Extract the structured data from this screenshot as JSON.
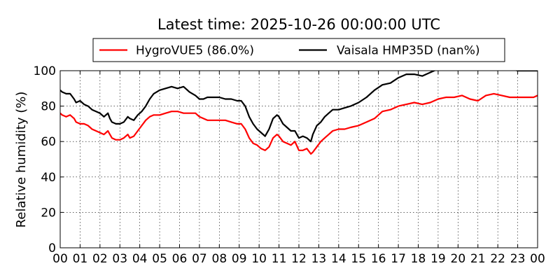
{
  "chart_data": {
    "type": "line",
    "title": "Latest time: 2025-10-26 00:00:00 UTC",
    "xlabel": "",
    "ylabel": "Relative humidity (%)",
    "xlim": [
      0,
      24
    ],
    "ylim": [
      0,
      100
    ],
    "grid": true,
    "legend_position": "top",
    "x_tick_labels": [
      "00",
      "01",
      "02",
      "03",
      "04",
      "05",
      "06",
      "07",
      "08",
      "09",
      "10",
      "11",
      "12",
      "13",
      "14",
      "15",
      "16",
      "17",
      "18",
      "19",
      "20",
      "21",
      "22",
      "23",
      "00"
    ],
    "y_ticks": [
      0,
      20,
      40,
      60,
      80,
      100
    ],
    "series": [
      {
        "name": "HygroVUE5 (86.0%)",
        "color": "#ff0000",
        "x": [
          0,
          0.1,
          0.3,
          0.5,
          0.7,
          0.8,
          1.0,
          1.2,
          1.4,
          1.6,
          1.8,
          2.0,
          2.2,
          2.4,
          2.5,
          2.6,
          2.8,
          3.0,
          3.2,
          3.4,
          3.5,
          3.7,
          3.9,
          4.1,
          4.3,
          4.5,
          4.7,
          5.0,
          5.3,
          5.6,
          5.9,
          6.2,
          6.5,
          6.8,
          7.0,
          7.2,
          7.4,
          7.7,
          8.0,
          8.3,
          8.6,
          8.9,
          9.1,
          9.3,
          9.5,
          9.7,
          9.9,
          10.1,
          10.3,
          10.5,
          10.7,
          10.9,
          11.0,
          11.2,
          11.4,
          11.6,
          11.8,
          12.0,
          12.2,
          12.4,
          12.6,
          12.7,
          12.9,
          13.1,
          13.3,
          13.5,
          13.7,
          14.0,
          14.3,
          14.6,
          15.0,
          15.4,
          15.8,
          16.2,
          16.6,
          17.0,
          17.4,
          17.8,
          18.2,
          18.6,
          19.0,
          19.4,
          19.8,
          20.2,
          20.6,
          21.0,
          21.4,
          21.8,
          22.2,
          22.6,
          23.0,
          23.4,
          23.8,
          24.0
        ],
        "values": [
          76,
          75,
          74,
          75,
          73,
          71,
          70,
          70,
          69,
          67,
          66,
          65,
          64,
          66,
          64,
          62,
          61,
          61,
          62,
          64,
          62,
          63,
          66,
          69,
          72,
          74,
          75,
          75,
          76,
          77,
          77,
          76,
          76,
          76,
          74,
          73,
          72,
          72,
          72,
          72,
          71,
          70,
          70,
          67,
          62,
          59,
          58,
          56,
          55,
          57,
          62,
          64,
          63,
          60,
          59,
          58,
          60,
          55,
          55,
          56,
          53,
          54,
          57,
          60,
          62,
          64,
          66,
          67,
          67,
          68,
          69,
          71,
          73,
          77,
          78,
          80,
          81,
          82,
          81,
          82,
          84,
          85,
          85,
          86,
          84,
          83,
          86,
          87,
          86,
          85,
          85,
          85,
          85,
          86
        ]
      },
      {
        "name": "Vaisala HMP35D (nan%)",
        "color": "#000000",
        "x": [
          0,
          0.1,
          0.3,
          0.5,
          0.7,
          0.8,
          1.0,
          1.2,
          1.4,
          1.6,
          1.8,
          2.0,
          2.2,
          2.4,
          2.5,
          2.6,
          2.8,
          3.0,
          3.2,
          3.4,
          3.5,
          3.7,
          3.9,
          4.1,
          4.3,
          4.5,
          4.7,
          5.0,
          5.3,
          5.6,
          5.9,
          6.2,
          6.5,
          6.8,
          7.0,
          7.2,
          7.4,
          7.7,
          8.0,
          8.3,
          8.6,
          8.9,
          9.1,
          9.3,
          9.5,
          9.7,
          9.9,
          10.1,
          10.3,
          10.5,
          10.7,
          10.9,
          11.0,
          11.2,
          11.4,
          11.6,
          11.8,
          12.0,
          12.2,
          12.4,
          12.6,
          12.7,
          12.9,
          13.1,
          13.3,
          13.5,
          13.7,
          14.0,
          14.3,
          14.6,
          15.0,
          15.4,
          15.8,
          16.2,
          16.6,
          17.0,
          17.4,
          17.8,
          18.2,
          18.6,
          19.0,
          19.4,
          19.8,
          20.2,
          20.6,
          21.0,
          21.4,
          21.8,
          22.2,
          22.6,
          23.0,
          23.4,
          23.8,
          24.0
        ],
        "values": [
          89,
          88,
          87,
          87,
          84,
          82,
          83,
          81,
          80,
          78,
          77,
          76,
          74,
          76,
          73,
          71,
          70,
          70,
          71,
          74,
          73,
          72,
          75,
          77,
          80,
          84,
          87,
          89,
          90,
          91,
          90,
          91,
          88,
          86,
          84,
          84,
          85,
          85,
          85,
          84,
          84,
          83,
          83,
          80,
          74,
          70,
          67,
          65,
          63,
          67,
          73,
          75,
          74,
          70,
          68,
          66,
          66,
          62,
          63,
          62,
          60,
          64,
          69,
          71,
          74,
          76,
          78,
          78,
          79,
          80,
          82,
          85,
          89,
          92,
          93,
          96,
          98,
          98,
          97,
          99,
          101,
          102,
          103,
          104,
          101,
          101,
          102,
          103,
          102,
          101,
          100,
          100,
          100,
          100
        ]
      }
    ]
  }
}
